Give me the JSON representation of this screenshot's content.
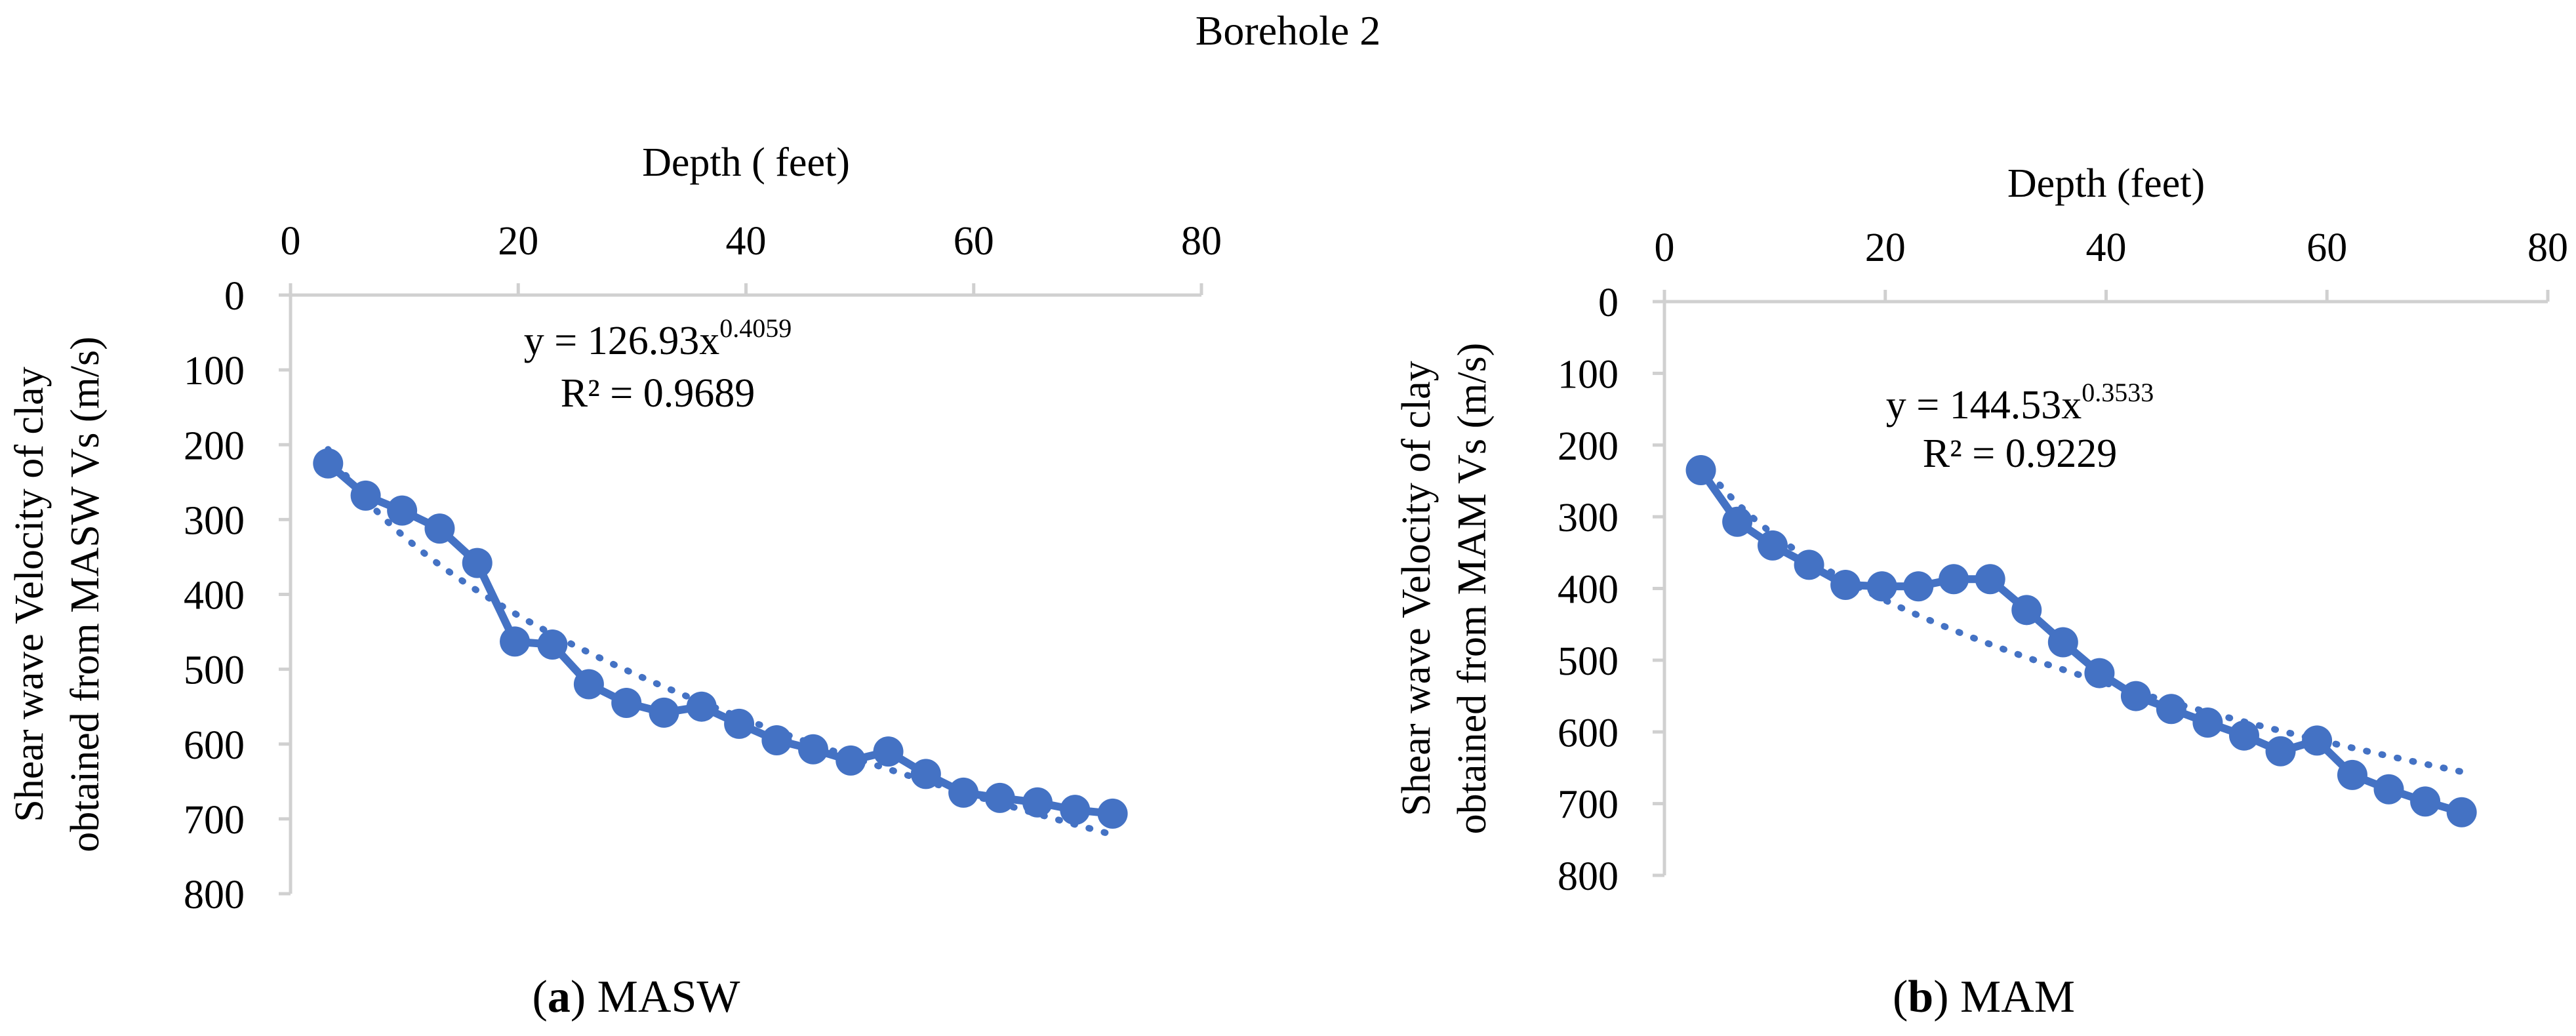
{
  "title": "Borehole 2",
  "colors": {
    "series": "#4472C4",
    "axis": "#D0D0D0"
  },
  "chart_data": [
    {
      "type": "line",
      "panel": "a",
      "caption_label": "a",
      "caption_text": "MASW",
      "xlabel": "Depth ( feet)",
      "ylabel_line1": "Shear wave Velocity of clay",
      "ylabel_line2": "obtained from MASW Vs (m/s)",
      "xlim": [
        0,
        80
      ],
      "ylim": [
        0,
        800
      ],
      "y_inverted": true,
      "x_axis_position": "top",
      "xticks": [
        0,
        20,
        40,
        60,
        80
      ],
      "yticks": [
        0,
        100,
        200,
        300,
        400,
        500,
        600,
        700,
        800
      ],
      "series": [
        {
          "name": "MASW Vs",
          "x": [
            3.3,
            6.6,
            9.8,
            13.1,
            16.4,
            19.7,
            23.0,
            26.2,
            29.5,
            32.8,
            36.1,
            39.4,
            42.7,
            45.9,
            49.2,
            52.5,
            55.8,
            59.1,
            62.3,
            65.6,
            68.9,
            72.2
          ],
          "y": [
            225,
            268,
            288,
            312,
            358,
            463,
            467,
            520,
            545,
            558,
            550,
            573,
            595,
            607,
            622,
            610,
            640,
            665,
            672,
            678,
            688,
            693
          ]
        }
      ],
      "trendline": {
        "type": "power",
        "a": 126.93,
        "b": 0.4059,
        "r2": 0.9689
      },
      "equation_main": "y = 126.93x",
      "equation_exp": "0.4059",
      "r2_text": "R² = 0.9689"
    },
    {
      "type": "line",
      "panel": "b",
      "caption_label": "b",
      "caption_text": "MAM",
      "xlabel": "Depth (feet)",
      "ylabel_line1": "Shear wave Velocity of clay",
      "ylabel_line2": "obtained from MAM Vs (m/s)",
      "xlim": [
        0,
        80
      ],
      "ylim": [
        0,
        800
      ],
      "y_inverted": true,
      "x_axis_position": "top",
      "xticks": [
        0,
        20,
        40,
        60,
        80
      ],
      "yticks": [
        0,
        100,
        200,
        300,
        400,
        500,
        600,
        700,
        800
      ],
      "series": [
        {
          "name": "MAM Vs",
          "x": [
            3.3,
            6.6,
            9.8,
            13.1,
            16.4,
            19.7,
            23.0,
            26.2,
            29.5,
            32.8,
            36.1,
            39.4,
            42.7,
            45.9,
            49.2,
            52.5,
            55.8,
            59.1,
            62.3,
            65.6,
            68.9,
            72.2
          ],
          "y": [
            235,
            307,
            340,
            367,
            395,
            397,
            397,
            387,
            387,
            430,
            475,
            518,
            550,
            568,
            587,
            605,
            627,
            612,
            660,
            680,
            697,
            712
          ]
        }
      ],
      "trendline": {
        "type": "power",
        "a": 144.53,
        "b": 0.3533,
        "r2": 0.9229
      },
      "equation_main": "y = 144.53x",
      "equation_exp": "0.3533",
      "r2_text": "R² = 0.9229"
    }
  ]
}
